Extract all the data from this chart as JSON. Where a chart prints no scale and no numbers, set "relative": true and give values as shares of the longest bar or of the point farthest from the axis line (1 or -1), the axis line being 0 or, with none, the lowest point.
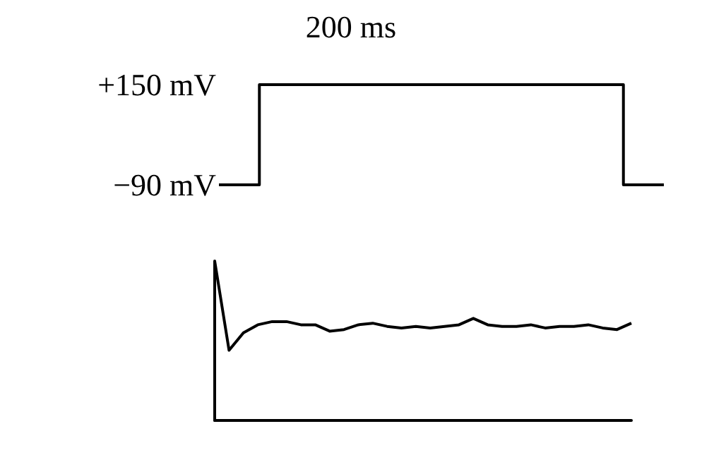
{
  "chart_data": [
    {
      "type": "step",
      "categories": [
        null,
        null,
        null,
        null,
        null,
        null,
        null,
        null,
        null,
        null,
        null,
        null
      ],
      "values": [
        -90,
        150,
        150,
        150,
        150,
        150,
        150,
        150,
        150,
        150,
        -90,
        -90
      ],
      "color": "#000000",
      "ylim": [
        -90,
        150
      ],
      "yticks": [
        {
          "value": -90,
          "label": "−90 mV"
        },
        {
          "value": 150,
          "label": "+150 mV"
        }
      ],
      "tick_labels": "y",
      "marker": "none",
      "line_style": "solid",
      "annotations": [
        "200 ms"
      ]
    },
    {
      "type": "line",
      "relative": true,
      "categories": [
        null,
        null,
        null,
        null,
        null,
        null,
        null,
        null,
        null,
        null,
        null,
        null,
        null,
        null,
        null,
        null,
        null,
        null,
        null,
        null,
        null,
        null,
        null,
        null,
        null,
        null,
        null,
        null,
        null,
        null
      ],
      "values": [
        1.0,
        0.44,
        0.55,
        0.6,
        0.62,
        0.62,
        0.6,
        0.6,
        0.56,
        0.57,
        0.6,
        0.61,
        0.59,
        0.58,
        0.59,
        0.58,
        0.59,
        0.6,
        0.64,
        0.6,
        0.59,
        0.59,
        0.6,
        0.58,
        0.59,
        0.59,
        0.6,
        0.58,
        0.57,
        0.61
      ],
      "color": "#000000",
      "tick_labels": false,
      "marker": "none",
      "line_style": "solid"
    }
  ]
}
